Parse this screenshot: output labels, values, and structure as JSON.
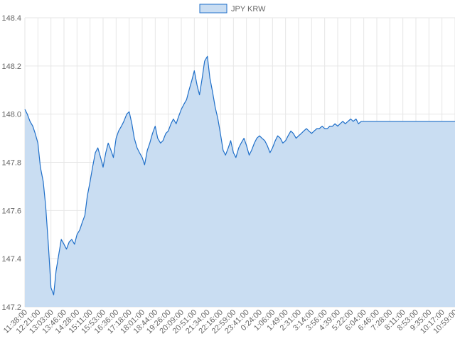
{
  "chart_data": {
    "type": "area",
    "title": "",
    "xlabel": "",
    "ylabel": "",
    "legend": {
      "position": "top-center",
      "entries": [
        "JPY KRW"
      ]
    },
    "grid": true,
    "colors": {
      "line": "#1f6fc9",
      "fill": "#c9ddf2",
      "grid": "#e6e6e6",
      "text": "#666666"
    },
    "ylim": [
      147.2,
      148.4
    ],
    "y_ticks": [
      "147.2",
      "147.4",
      "147.6",
      "147.8",
      "148.0",
      "148.2",
      "148.4"
    ],
    "x_ticks": [
      "11:38:00",
      "12:21:00",
      "13:03:00",
      "13:46:00",
      "14:28:00",
      "15:11:00",
      "15:53:00",
      "16:36:00",
      "17:18:00",
      "18:01:00",
      "18:44:00",
      "19:26:00",
      "20:09:00",
      "20:51:00",
      "21:34:00",
      "22:16:00",
      "22:59:00",
      "23:41:00",
      "0:24:00",
      "1:06:00",
      "1:49:00",
      "2:31:00",
      "3:14:00",
      "3:56:00",
      "4:39:00",
      "5:22:00",
      "6:04:00",
      "6:46:00",
      "7:28:00",
      "8:11:00",
      "8:53:00",
      "9:35:00",
      "10:17:00",
      "10:59:00"
    ],
    "series": [
      {
        "name": "JPY KRW",
        "x": [
          "11:38:00",
          "11:46:00",
          "11:55:00",
          "12:04:00",
          "12:12:00",
          "12:21:00",
          "12:29:00",
          "12:38:00",
          "12:46:00",
          "12:55:00",
          "13:03:00",
          "13:12:00",
          "13:20:00",
          "13:29:00",
          "13:37:00",
          "13:46:00",
          "13:54:00",
          "14:03:00",
          "14:11:00",
          "14:20:00",
          "14:28:00",
          "14:37:00",
          "14:45:00",
          "14:54:00",
          "15:02:00",
          "15:11:00",
          "15:19:00",
          "15:28:00",
          "15:36:00",
          "15:45:00",
          "15:53:00",
          "16:02:00",
          "16:10:00",
          "16:19:00",
          "16:27:00",
          "16:36:00",
          "16:44:00",
          "16:53:00",
          "17:01:00",
          "17:10:00",
          "17:18:00",
          "17:27:00",
          "17:35:00",
          "17:44:00",
          "17:52:00",
          "18:01:00",
          "18:09:00",
          "18:18:00",
          "18:26:00",
          "18:35:00",
          "18:44:00",
          "18:52:00",
          "19:01:00",
          "19:09:00",
          "19:18:00",
          "19:26:00",
          "19:35:00",
          "19:43:00",
          "19:52:00",
          "20:00:00",
          "20:09:00",
          "20:17:00",
          "20:26:00",
          "20:34:00",
          "20:43:00",
          "20:51:00",
          "21:00:00",
          "21:08:00",
          "21:17:00",
          "21:25:00",
          "21:34:00",
          "21:42:00",
          "21:51:00",
          "21:59:00",
          "22:08:00",
          "22:16:00",
          "22:25:00",
          "22:33:00",
          "22:42:00",
          "22:50:00",
          "22:59:00",
          "23:07:00",
          "23:16:00",
          "23:24:00",
          "23:33:00",
          "23:41:00",
          "23:50:00",
          "23:58:00",
          "0:07:00",
          "0:15:00",
          "0:24:00",
          "0:32:00",
          "0:41:00",
          "0:49:00",
          "0:58:00",
          "1:06:00",
          "1:15:00",
          "1:23:00",
          "1:32:00",
          "1:40:00",
          "1:49:00",
          "1:57:00",
          "2:06:00",
          "2:14:00",
          "2:23:00",
          "2:31:00",
          "2:40:00",
          "2:48:00",
          "2:57:00",
          "3:05:00",
          "3:14:00",
          "3:22:00",
          "3:31:00",
          "3:39:00",
          "3:48:00",
          "3:56:00",
          "4:05:00",
          "4:13:00",
          "4:22:00",
          "4:30:00",
          "4:39:00",
          "4:47:00",
          "4:56:00",
          "5:04:00",
          "5:13:00",
          "5:22:00",
          "5:30:00",
          "5:39:00",
          "5:47:00",
          "5:56:00",
          "6:04:00",
          "6:46:00",
          "7:28:00",
          "8:11:00",
          "8:53:00",
          "9:35:00",
          "10:17:00",
          "10:59:00"
        ],
        "values": [
          148.02,
          148.0,
          147.97,
          147.95,
          147.92,
          147.88,
          147.78,
          147.72,
          147.62,
          147.45,
          147.28,
          147.25,
          147.35,
          147.42,
          147.48,
          147.46,
          147.44,
          147.47,
          147.48,
          147.46,
          147.5,
          147.52,
          147.55,
          147.58,
          147.66,
          147.72,
          147.78,
          147.84,
          147.86,
          147.82,
          147.78,
          147.84,
          147.88,
          147.85,
          147.82,
          147.9,
          147.93,
          147.95,
          147.97,
          148.0,
          148.01,
          147.96,
          147.9,
          147.86,
          147.84,
          147.82,
          147.79,
          147.85,
          147.88,
          147.92,
          147.95,
          147.9,
          147.88,
          147.89,
          147.92,
          147.93,
          147.96,
          147.98,
          147.96,
          147.99,
          148.02,
          148.04,
          148.06,
          148.1,
          148.14,
          148.18,
          148.12,
          148.08,
          148.15,
          148.22,
          148.24,
          148.15,
          148.09,
          148.03,
          147.98,
          147.92,
          147.85,
          147.83,
          147.86,
          147.89,
          147.84,
          147.82,
          147.86,
          147.88,
          147.9,
          147.87,
          147.83,
          147.85,
          147.88,
          147.9,
          147.91,
          147.9,
          147.89,
          147.87,
          147.84,
          147.86,
          147.89,
          147.91,
          147.9,
          147.88,
          147.89,
          147.91,
          147.93,
          147.92,
          147.9,
          147.91,
          147.92,
          147.93,
          147.94,
          147.93,
          147.92,
          147.93,
          147.94,
          147.94,
          147.95,
          147.94,
          147.94,
          147.95,
          147.95,
          147.96,
          147.95,
          147.96,
          147.97,
          147.96,
          147.97,
          147.98,
          147.97,
          147.98,
          147.96,
          147.97,
          147.97,
          147.97,
          147.97,
          147.97,
          147.97,
          147.97,
          147.97,
          147.97
        ]
      }
    ]
  }
}
